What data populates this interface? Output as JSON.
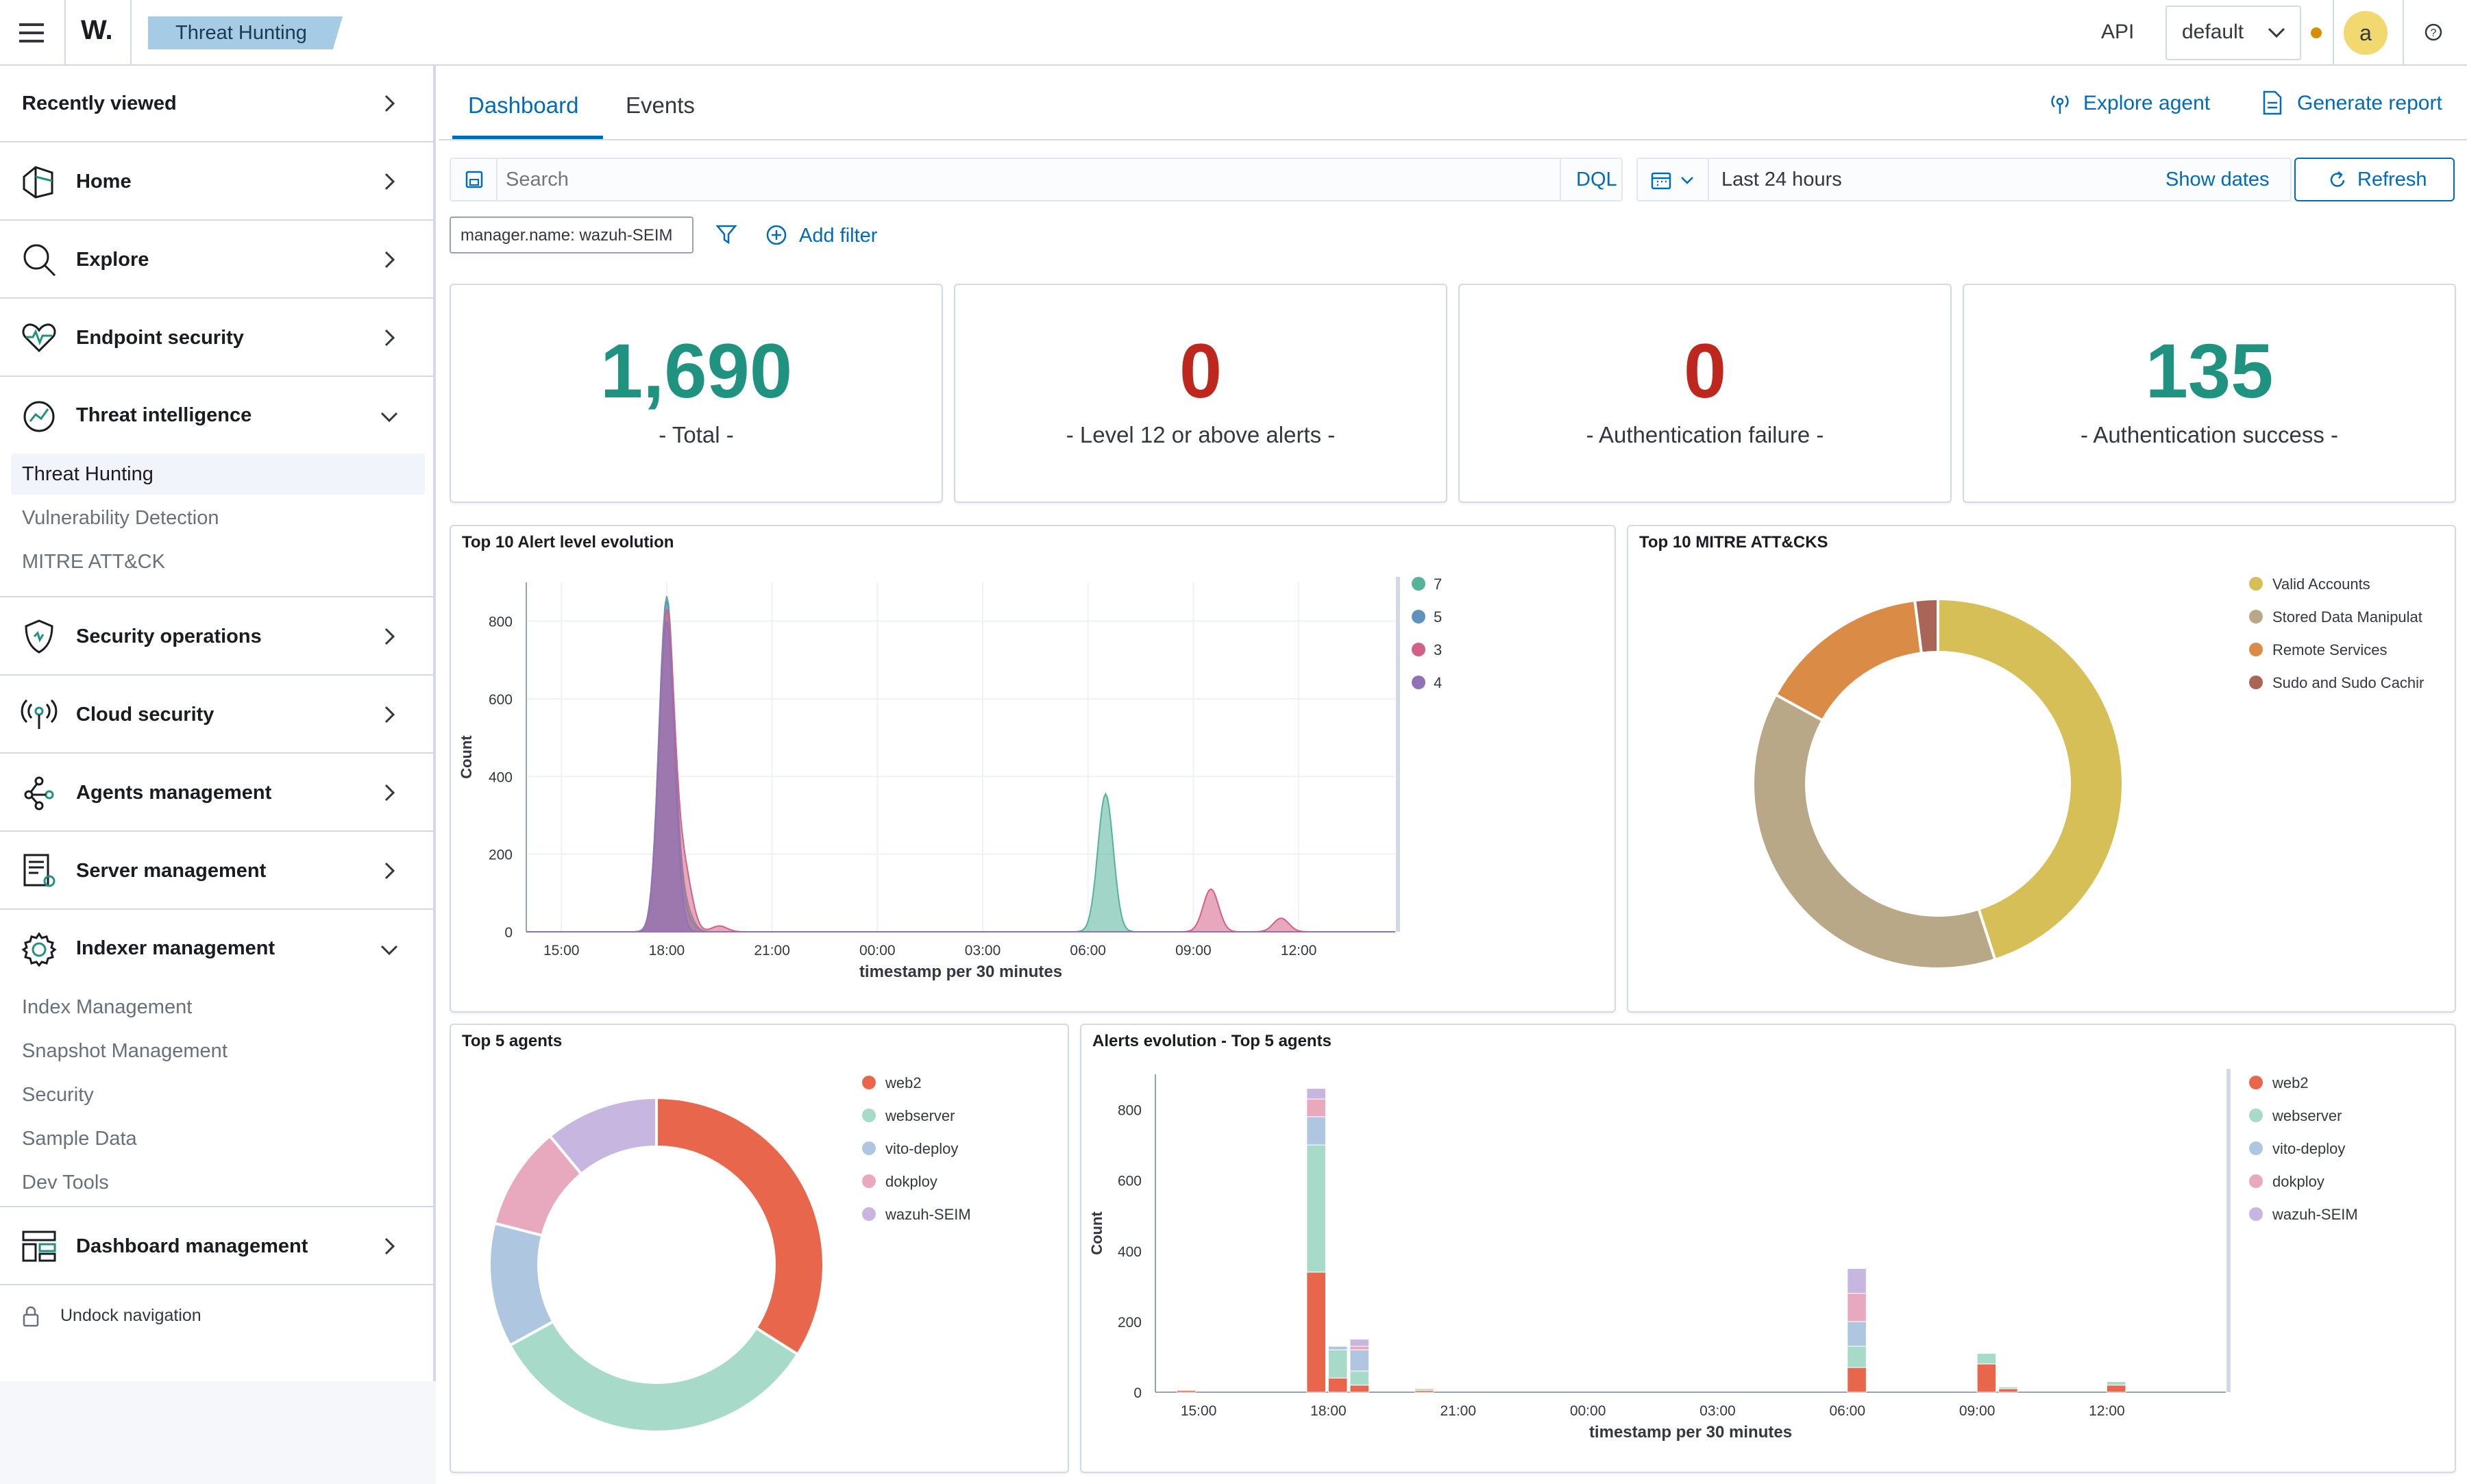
{
  "header": {
    "logo": "W.",
    "breadcrumb": "Threat Hunting",
    "api_label": "API",
    "tenant": "default",
    "avatar_letter": "a"
  },
  "sidebar": {
    "recently_viewed": "Recently viewed",
    "items": [
      {
        "label": "Home",
        "icon": "home-icon"
      },
      {
        "label": "Explore",
        "icon": "search-icon"
      },
      {
        "label": "Endpoint security",
        "icon": "heartbeat-icon"
      },
      {
        "label": "Threat intelligence",
        "icon": "threat-intel-icon"
      },
      {
        "label": "Security operations",
        "icon": "shield-icon"
      },
      {
        "label": "Cloud security",
        "icon": "broadcast-icon"
      },
      {
        "label": "Agents management",
        "icon": "agents-icon"
      },
      {
        "label": "Server management",
        "icon": "server-doc-icon"
      },
      {
        "label": "Indexer management",
        "icon": "gear-icon"
      },
      {
        "label": "Dashboard management",
        "icon": "dashboard-icon"
      }
    ],
    "threat_sub": [
      "Threat Hunting",
      "Vulnerability Detection",
      "MITRE ATT&CK"
    ],
    "indexer_sub": [
      "Index Management",
      "Snapshot Management",
      "Security",
      "Sample Data",
      "Dev Tools"
    ],
    "undock": "Undock navigation"
  },
  "tabs": [
    "Dashboard",
    "Events"
  ],
  "actions": {
    "explore_agent": "Explore agent",
    "generate_report": "Generate report"
  },
  "search": {
    "placeholder": "Search",
    "dql": "DQL",
    "time_range": "Last 24 hours",
    "show_dates": "Show dates",
    "refresh": "Refresh"
  },
  "filters": {
    "pill": "manager.name: wazuh-SEIM",
    "add_filter": "Add filter"
  },
  "metrics": [
    {
      "value": "1,690",
      "label": "- Total -",
      "color": "#209280"
    },
    {
      "value": "0",
      "label": "- Level 12 or above alerts -",
      "color": "#bd271e"
    },
    {
      "value": "0",
      "label": "- Authentication failure -",
      "color": "#bd271e"
    },
    {
      "value": "135",
      "label": "- Authentication success -",
      "color": "#209280"
    }
  ],
  "panels": {
    "alert_evolution": "Top 10 Alert level evolution",
    "mitre": "Top 10 MITRE ATT&CKS",
    "top_agents": "Top 5 agents",
    "agents_evolution": "Alerts evolution - Top 5 agents"
  },
  "chart_data": [
    {
      "type": "area",
      "title": "Top 10 Alert level evolution",
      "xlabel": "timestamp per 30 minutes",
      "ylabel": "Count",
      "ylim": [
        0,
        900
      ],
      "yticks": [
        0,
        200,
        400,
        600,
        800
      ],
      "x_ticks": [
        "15:00",
        "18:00",
        "21:00",
        "00:00",
        "03:00",
        "06:00",
        "09:00",
        "12:00"
      ],
      "legend": "top-right",
      "series": [
        {
          "name": "7",
          "color": "#54b399",
          "peaks": [
            [
              18.0,
              860
            ],
            [
              18.5,
              60
            ],
            [
              6.5,
              355
            ]
          ]
        },
        {
          "name": "5",
          "color": "#6092c0",
          "peaks": [
            [
              18.0,
              850
            ],
            [
              18.5,
              40
            ]
          ]
        },
        {
          "name": "3",
          "color": "#d36086",
          "peaks": [
            [
              18.0,
              820
            ],
            [
              18.5,
              150
            ],
            [
              19.5,
              15
            ],
            [
              9.5,
              110
            ],
            [
              11.5,
              35
            ]
          ]
        },
        {
          "name": "4",
          "color": "#9170b8",
          "peaks": [
            [
              18.0,
              800
            ]
          ]
        }
      ]
    },
    {
      "type": "pie",
      "title": "Top 10 MITRE ATT&CKS",
      "legend": "top-right",
      "labels": [
        "Valid Accounts",
        "Stored Data Manipulat",
        "Remote Services",
        "Sudo and Sudo Cachir"
      ],
      "values": [
        45,
        38,
        15,
        2
      ],
      "colors": [
        "#d6bf57",
        "#b9a888",
        "#da8b45",
        "#aa6556"
      ]
    },
    {
      "type": "pie",
      "title": "Top 5 agents",
      "legend": "top-right",
      "labels": [
        "web2",
        "webserver",
        "vito-deploy",
        "dokploy",
        "wazuh-SEIM"
      ],
      "values": [
        34,
        33,
        12,
        10,
        11
      ],
      "colors": [
        "#e7664c",
        "#a8dac9",
        "#aec6e0",
        "#e8a9be",
        "#c7b6e0"
      ]
    },
    {
      "type": "bar",
      "title": "Alerts evolution - Top 5 agents",
      "xlabel": "timestamp per 30 minutes",
      "ylabel": "Count",
      "ylim": [
        0,
        900
      ],
      "yticks": [
        0,
        200,
        400,
        600,
        800
      ],
      "x_ticks": [
        "15:00",
        "18:00",
        "21:00",
        "00:00",
        "03:00",
        "06:00",
        "09:00",
        "12:00"
      ],
      "legend": "top-right",
      "series_names": [
        "web2",
        "webserver",
        "vito-deploy",
        "dokploy",
        "wazuh-SEIM"
      ],
      "colors": [
        "#e7664c",
        "#a8dac9",
        "#aec6e0",
        "#e8a9be",
        "#c7b6e0"
      ],
      "bars": [
        {
          "x": "17:30",
          "values": [
            340,
            360,
            80,
            50,
            30
          ]
        },
        {
          "x": "18:00",
          "values": [
            40,
            80,
            10,
            0,
            0
          ]
        },
        {
          "x": "18:30",
          "values": [
            20,
            40,
            60,
            10,
            20
          ]
        },
        {
          "x": "20:00",
          "values": [
            5,
            5,
            0,
            0,
            0
          ]
        },
        {
          "x": "06:00",
          "values": [
            70,
            60,
            70,
            80,
            70
          ]
        },
        {
          "x": "09:00",
          "values": [
            80,
            30,
            0,
            0,
            0
          ]
        },
        {
          "x": "09:30",
          "values": [
            10,
            5,
            0,
            0,
            0
          ]
        },
        {
          "x": "12:00",
          "values": [
            20,
            10,
            0,
            0,
            0
          ]
        },
        {
          "x": "14:30",
          "values": [
            5,
            0,
            0,
            0,
            0
          ]
        }
      ]
    }
  ]
}
